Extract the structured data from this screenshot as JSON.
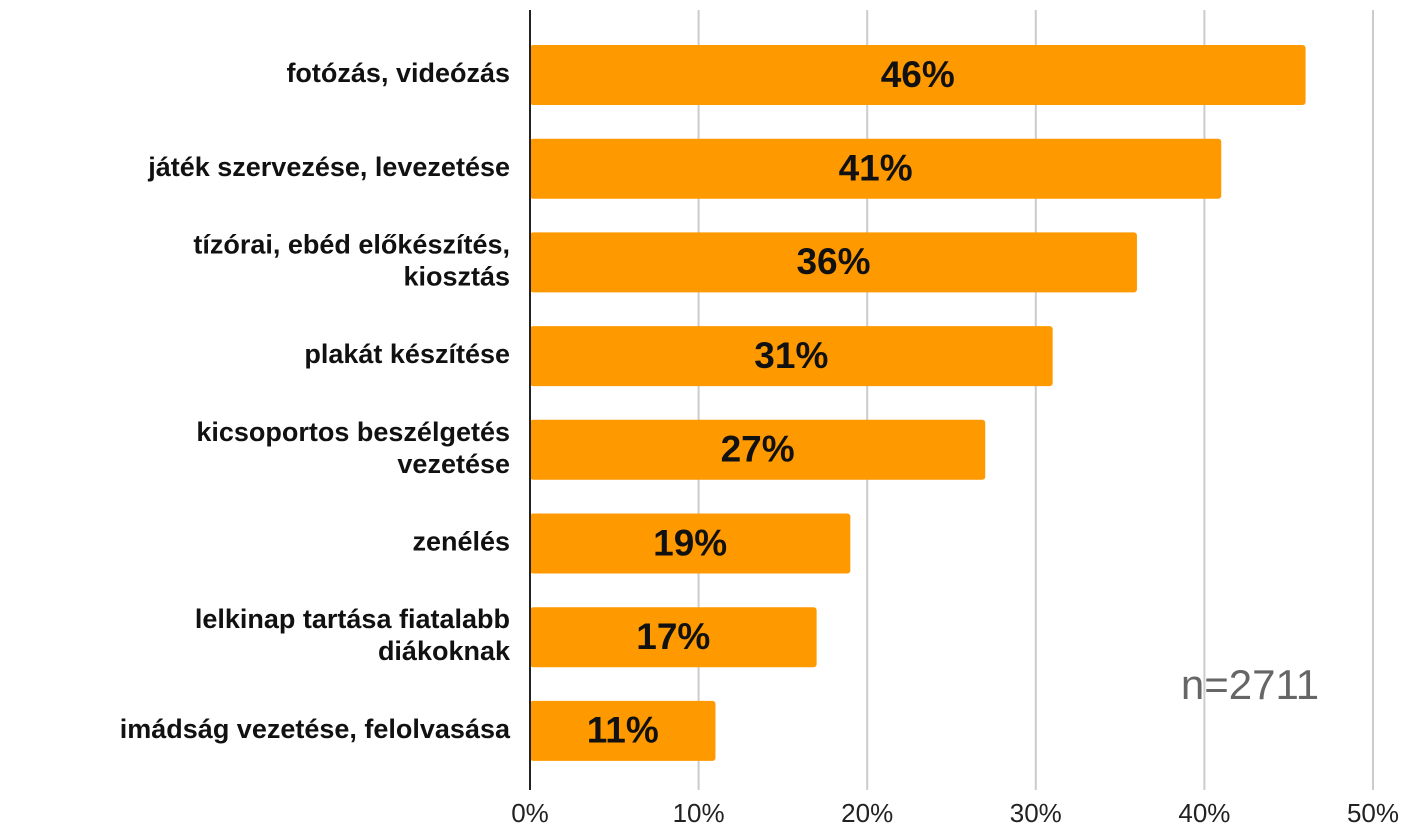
{
  "chart_data": {
    "type": "bar",
    "orientation": "horizontal",
    "categories": [
      "fotózás, videózás",
      "játék szervezése, levezetése",
      "tízórai, ebéd előkészítés, kiosztás",
      "plakát készítése",
      "kicsoportos beszélgetés vezetése",
      "zenélés",
      "lelkinap tartása fiatalabb diákoknak",
      "imádság vezetése, felolvasása"
    ],
    "values": [
      46,
      41,
      36,
      31,
      27,
      19,
      17,
      11
    ],
    "value_labels": [
      "46%",
      "41%",
      "36%",
      "31%",
      "27%",
      "19%",
      "17%",
      "11%"
    ],
    "color": "#ff9900",
    "xlim": [
      0,
      50
    ],
    "xticks": [
      {
        "value": 0,
        "label": "0%"
      },
      {
        "value": 10,
        "label": "10%"
      },
      {
        "value": 20,
        "label": "20%"
      },
      {
        "value": 30,
        "label": "30%"
      },
      {
        "value": 40,
        "label": "40%"
      },
      {
        "value": 50,
        "label": "50%"
      }
    ],
    "grid": true,
    "annotation": "n=2711"
  }
}
